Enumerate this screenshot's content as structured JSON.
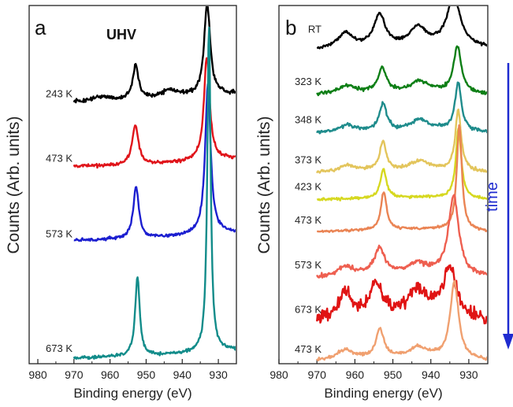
{
  "figure": {
    "ylabel": "Counts (Arb. units)",
    "arrow_label": "time",
    "arrow_color": "#1f2bd0"
  },
  "chart_data": [
    {
      "type": "line",
      "panel": "a",
      "title": "UHV",
      "xlabel": "Binding energy (eV)",
      "ylabel": "Counts (Arb. units)",
      "xlim": [
        980,
        925
      ],
      "x_reversed": true,
      "xticks": [
        980,
        970,
        960,
        950,
        940,
        930
      ],
      "yticks": false,
      "grid": false,
      "series": [
        {
          "name": "243 K",
          "color": "#000000",
          "baseline": 6.75,
          "noise": 0.05,
          "bg": {
            "x": [
              970,
              960,
              950,
              940,
              930,
              925
            ],
            "y": [
              0,
              0.03,
              0.06,
              0.12,
              0.2,
              0.22
            ]
          },
          "peaks": [
            {
              "c": 933.1,
              "h": 2.4,
              "w": 1.0
            },
            {
              "c": 952.9,
              "h": 0.9,
              "w": 1.0
            },
            {
              "c": 943.5,
              "h": 0.2,
              "w": 3.0
            },
            {
              "c": 962.5,
              "h": 0.1,
              "w": 3.0
            }
          ]
        },
        {
          "name": "473 K",
          "color": "#e0141a",
          "baseline": 5.05,
          "noise": 0.04,
          "bg": {
            "x": [
              970,
              960,
              950,
              940,
              930,
              925
            ],
            "y": [
              0,
              0.03,
              0.06,
              0.12,
              0.2,
              0.22
            ]
          },
          "peaks": [
            {
              "c": 933.2,
              "h": 2.7,
              "w": 0.95
            },
            {
              "c": 953.0,
              "h": 1.05,
              "w": 1.0
            }
          ]
        },
        {
          "name": "573 K",
          "color": "#1c1fd0",
          "baseline": 3.1,
          "noise": 0.04,
          "bg": {
            "x": [
              970,
              960,
              950,
              940,
              930,
              925
            ],
            "y": [
              0,
              0.03,
              0.06,
              0.12,
              0.2,
              0.22
            ]
          },
          "peaks": [
            {
              "c": 932.9,
              "h": 3.95,
              "w": 0.9
            },
            {
              "c": 952.8,
              "h": 1.35,
              "w": 0.95
            }
          ]
        },
        {
          "name": "673 K",
          "color": "#128c8a",
          "baseline": 0.0,
          "noise": 0.04,
          "bg": {
            "x": [
              970,
              960,
              950,
              940,
              930,
              925
            ],
            "y": [
              0,
              0.03,
              0.06,
              0.12,
              0.2,
              0.22
            ]
          },
          "peaks": [
            {
              "c": 932.6,
              "h": 8.6,
              "w": 0.55
            },
            {
              "c": 952.4,
              "h": 2.1,
              "w": 0.75
            }
          ]
        }
      ]
    },
    {
      "type": "line",
      "panel": "b",
      "title": "",
      "xlabel": "Binding energy (eV)",
      "ylabel": "Counts (Arb. units)",
      "xlim": [
        980,
        925
      ],
      "x_reversed": true,
      "xticks": [
        980,
        970,
        960,
        950,
        940,
        930
      ],
      "yticks": false,
      "grid": false,
      "series": [
        {
          "name": "RT",
          "color": "#000000",
          "baseline": 9.3,
          "noise": 0.05,
          "bg": {
            "x": [
              970,
              960,
              950,
              940,
              930,
              925
            ],
            "y": [
              0,
              0.05,
              0.1,
              0.15,
              0.1,
              0.05
            ]
          },
          "peaks": [
            {
              "c": 934.0,
              "h": 1.6,
              "w": 2.0
            },
            {
              "c": 953.5,
              "h": 1.0,
              "w": 1.8
            },
            {
              "c": 943.5,
              "h": 0.55,
              "w": 2.5
            },
            {
              "c": 962.5,
              "h": 0.45,
              "w": 2.5
            }
          ]
        },
        {
          "name": "323 K",
          "color": "#0e7f16",
          "baseline": 7.9,
          "noise": 0.05,
          "bg": {
            "x": [
              970,
              960,
              950,
              940,
              930,
              925
            ],
            "y": [
              0,
              0.04,
              0.08,
              0.12,
              0.05,
              0.0
            ]
          },
          "peaks": [
            {
              "c": 933.0,
              "h": 1.45,
              "w": 1.2
            },
            {
              "c": 952.8,
              "h": 0.75,
              "w": 1.3
            },
            {
              "c": 943.0,
              "h": 0.3,
              "w": 2.5
            },
            {
              "c": 962.0,
              "h": 0.25,
              "w": 2.5
            }
          ]
        },
        {
          "name": "348 K",
          "color": "#1f8c8c",
          "baseline": 6.7,
          "noise": 0.05,
          "bg": {
            "x": [
              970,
              960,
              950,
              940,
              930,
              925
            ],
            "y": [
              0,
              0.04,
              0.08,
              0.12,
              0.05,
              0.0
            ]
          },
          "peaks": [
            {
              "c": 932.8,
              "h": 1.5,
              "w": 1.0
            },
            {
              "c": 952.6,
              "h": 0.85,
              "w": 1.1
            },
            {
              "c": 943.0,
              "h": 0.3,
              "w": 2.5
            },
            {
              "c": 962.0,
              "h": 0.2,
              "w": 2.5
            }
          ]
        },
        {
          "name": "373 K",
          "color": "#e3c55c",
          "baseline": 5.45,
          "noise": 0.05,
          "bg": {
            "x": [
              970,
              960,
              950,
              940,
              930,
              925
            ],
            "y": [
              0,
              0.04,
              0.08,
              0.12,
              0.05,
              0.0
            ]
          },
          "peaks": [
            {
              "c": 932.8,
              "h": 1.9,
              "w": 0.9
            },
            {
              "c": 952.6,
              "h": 0.9,
              "w": 1.0
            },
            {
              "c": 943.0,
              "h": 0.25,
              "w": 2.5
            },
            {
              "c": 962.0,
              "h": 0.2,
              "w": 2.5
            }
          ]
        },
        {
          "name": "423 K",
          "color": "#d6d820",
          "baseline": 4.6,
          "noise": 0.04,
          "bg": {
            "x": [
              970,
              960,
              950,
              940,
              930,
              925
            ],
            "y": [
              0,
              0.03,
              0.06,
              0.08,
              0.04,
              0.0
            ]
          },
          "peaks": [
            {
              "c": 932.7,
              "h": 2.2,
              "w": 0.85
            },
            {
              "c": 952.5,
              "h": 0.9,
              "w": 0.95
            }
          ]
        },
        {
          "name": "473 K",
          "color": "#ea8454",
          "baseline": 3.6,
          "noise": 0.04,
          "bg": {
            "x": [
              970,
              960,
              950,
              940,
              930,
              925
            ],
            "y": [
              0,
              0.03,
              0.06,
              0.08,
              0.04,
              0.0
            ]
          },
          "peaks": [
            {
              "c": 932.5,
              "h": 3.3,
              "w": 0.8
            },
            {
              "c": 952.4,
              "h": 1.2,
              "w": 0.9
            }
          ]
        },
        {
          "name": "573 K",
          "color": "#ee5f50",
          "baseline": 2.15,
          "noise": 0.07,
          "bg": {
            "x": [
              970,
              960,
              950,
              940,
              930,
              925
            ],
            "y": [
              0,
              0.05,
              0.1,
              0.15,
              0.05,
              0.0
            ]
          },
          "peaks": [
            {
              "c": 934.0,
              "h": 2.5,
              "w": 1.6
            },
            {
              "c": 953.5,
              "h": 0.8,
              "w": 1.8
            },
            {
              "c": 943.5,
              "h": 0.3,
              "w": 2.5
            },
            {
              "c": 962.5,
              "h": 0.3,
              "w": 2.5
            }
          ]
        },
        {
          "name": "673 K",
          "color": "#e01414",
          "baseline": 0.75,
          "noise": 0.2,
          "bg": {
            "x": [
              970,
              960,
              950,
              940,
              930,
              925
            ],
            "y": [
              0,
              0.1,
              0.2,
              0.3,
              0.1,
              0.0
            ]
          },
          "peaks": [
            {
              "c": 935.0,
              "h": 1.5,
              "w": 2.0
            },
            {
              "c": 954.5,
              "h": 1.0,
              "w": 2.0
            },
            {
              "c": 943.5,
              "h": 0.7,
              "w": 3.0
            },
            {
              "c": 962.5,
              "h": 0.8,
              "w": 2.5
            }
          ]
        },
        {
          "name": "473 K",
          "color": "#f0a070",
          "baseline": -0.45,
          "noise": 0.05,
          "bg": {
            "x": [
              970,
              960,
              950,
              940,
              930,
              925
            ],
            "y": [
              0,
              0.04,
              0.08,
              0.12,
              0.05,
              0.0
            ]
          },
          "peaks": [
            {
              "c": 933.8,
              "h": 2.4,
              "w": 1.3
            },
            {
              "c": 953.4,
              "h": 0.9,
              "w": 1.3
            },
            {
              "c": 943.5,
              "h": 0.3,
              "w": 2.5
            },
            {
              "c": 962.5,
              "h": 0.3,
              "w": 2.5
            }
          ]
        }
      ]
    }
  ]
}
